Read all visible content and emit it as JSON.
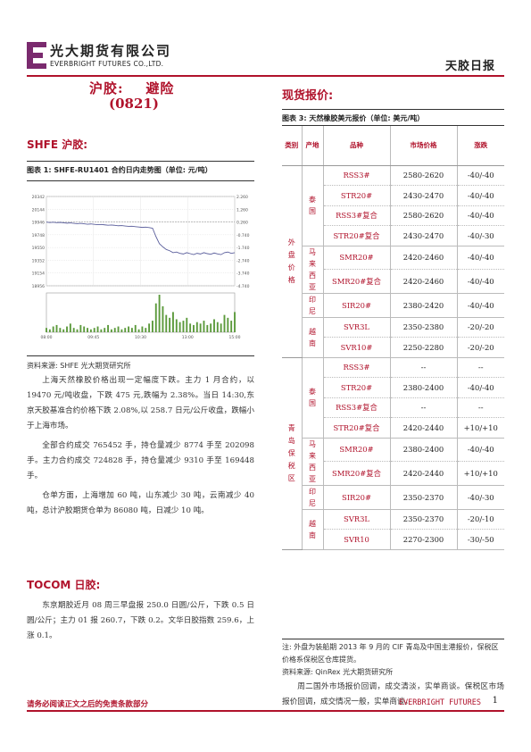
{
  "header": {
    "company_cn": "光大期货有限公司",
    "company_en": "EVERBRIGHT FUTURES CO.,LTD.",
    "report_type": "天胶日报",
    "logo_color": "#7a2a6e"
  },
  "title": {
    "main": "沪胶:    避险",
    "code": "(0821)"
  },
  "shfe": {
    "heading": "SHFE 沪胶:",
    "figure_caption": "图表 1:  SHFE-RU1401 合约日内走势图（单位:  元/吨）",
    "source": "资料来源:  SHFE    光大期货研究所",
    "paragraphs": [
      "上海天然橡胶价格出现一定幅度下跌。主力 1 月合约，以 19470 元/吨收盘，下跌 475 元,跌幅为 2.38%。当日 14:30,东京天胶基准合约价格下跌 2.08%,以 258.7 日元/公斤收盘，跌幅小于上海市场。",
      "全部合约成交 765452 手，持仓量减少 8774 手至 202098 手。主力合约成交 724828 手，持仓量减少 9310 手至 169448 手。",
      "仓单方面，上海增加 60 吨，山东减少 30 吨，云南减少 40 吨，总计沪胶期货仓单为 86080 吨，日减少 10 吨。"
    ]
  },
  "chart_data": {
    "type": "line",
    "title": "",
    "y_left_ticks": [
      "20342",
      "20144",
      "19946",
      "19748",
      "19550",
      "19352",
      "19154",
      "18956"
    ],
    "y_right_ticks": [
      "2.260",
      "1.260",
      "0.260",
      "-0.740",
      "-1.740",
      "-2.740",
      "-3.740",
      "-4.740"
    ],
    "x_ticks": [
      "08:00",
      "09:45",
      "10:30",
      "13:00",
      "15:00"
    ],
    "ylim": [
      18956,
      20342
    ],
    "price_series": [
      19945,
      19938,
      19942,
      19936,
      19940,
      19934,
      19928,
      19932,
      19926,
      19920,
      19925,
      19918,
      19912,
      19916,
      19910,
      19905,
      19908,
      19902,
      19896,
      19900,
      19894,
      19888,
      19890,
      19884,
      19878,
      19880,
      19874,
      19868,
      19862,
      19866,
      19860,
      19850,
      19720,
      19610,
      19560,
      19520,
      19500,
      19470,
      19480,
      19460,
      19450,
      19470,
      19455,
      19440,
      19460,
      19450,
      19470,
      19455,
      19445,
      19465,
      19450,
      19440,
      19470,
      19480,
      19460,
      19470
    ],
    "reference_line": 19945,
    "volume_series": [
      3,
      2,
      4,
      5,
      3,
      2,
      4,
      6,
      3,
      2,
      5,
      4,
      3,
      2,
      3,
      4,
      2,
      3,
      5,
      2,
      3,
      4,
      2,
      3,
      4,
      3,
      5,
      2,
      4,
      3,
      6,
      8,
      20,
      26,
      18,
      12,
      10,
      14,
      9,
      7,
      8,
      10,
      6,
      5,
      7,
      6,
      8,
      5,
      6,
      9,
      7,
      6,
      12,
      10,
      8,
      14
    ],
    "line_color": "#5b5f9c",
    "volume_color": "#5c9a3c"
  },
  "tocom": {
    "heading": "TOCOM 日胶:",
    "paragraph": "东京期胶近月 08 周三早盘报 250.0 日圆/公斤，下跌 0.5 日圆/公斤；主力 01 报 260.7，下跌 0.2。文华日胶指数 259.6，上涨 0.1。"
  },
  "spot": {
    "heading": "现货报价:",
    "table_caption": "图表 3:  天然橡胶美元报价（单位:  美元/吨）",
    "columns": [
      "类别",
      "产地",
      "品种",
      "市场价格",
      "涨跌"
    ],
    "groups": [
      {
        "category": "外盘价格",
        "origins": [
          {
            "origin": "泰国",
            "rows": [
              [
                "RSS3#",
                "2580-2620",
                "-40/-40"
              ],
              [
                "STR20#",
                "2430-2470",
                "-40/-40"
              ],
              [
                "RSS3#复合",
                "2580-2620",
                "-40/-40"
              ],
              [
                "STR20#复合",
                "2430-2470",
                "-40/-30"
              ]
            ]
          },
          {
            "origin": "马来西亚",
            "rows": [
              [
                "SMR20#",
                "2420-2460",
                "-40/-40"
              ],
              [
                "SMR20#复合",
                "2420-2460",
                "-40/-40"
              ]
            ]
          },
          {
            "origin": "印尼",
            "rows": [
              [
                "SIR20#",
                "2380-2420",
                "-40/-40"
              ]
            ]
          },
          {
            "origin": "越南",
            "rows": [
              [
                "SVR3L",
                "2350-2380",
                "-20/-20"
              ],
              [
                "SVR10#",
                "2250-2280",
                "-20/-20"
              ]
            ]
          }
        ]
      },
      {
        "category": "青岛保税区",
        "origins": [
          {
            "origin": "泰国",
            "rows": [
              [
                "RSS3#",
                "--",
                "--"
              ],
              [
                "STR20#",
                "2380-2400",
                "-40/-40"
              ],
              [
                "RSS3#复合",
                "--",
                "--"
              ],
              [
                "STR20#复合",
                "2420-2440",
                "+10/+10"
              ]
            ]
          },
          {
            "origin": "马来西亚",
            "rows": [
              [
                "SMR20#",
                "2380-2400",
                "-40/-40"
              ],
              [
                "SMR20#复合",
                "2420-2440",
                "+10/+10"
              ]
            ]
          },
          {
            "origin": "印尼",
            "rows": [
              [
                "SIR20#",
                "2350-2370",
                "-40/-30"
              ]
            ]
          },
          {
            "origin": "越南",
            "rows": [
              [
                "SVR3L",
                "2350-2370",
                "-20/-10"
              ],
              [
                "SVR10",
                "2270-2300",
                "-30/-50"
              ]
            ]
          }
        ]
      }
    ],
    "note": "注: 外盘为装船期 2013 年 9 月的 CIF 青岛及中国主港报价，保税区价格系保税区仓库提货。",
    "source": "资料来源:  QinRex   光大期货研究所",
    "paragraph": "周二国外市场报价回调，成交清淡，实单商谈。保税区市场报价回调，成交情况一般，实单商谈。"
  },
  "footer": {
    "disclaimer": "请务必阅读正文之后的免责条款部分",
    "brand": "EVERBRIGHT FUTURES",
    "page": "1"
  }
}
